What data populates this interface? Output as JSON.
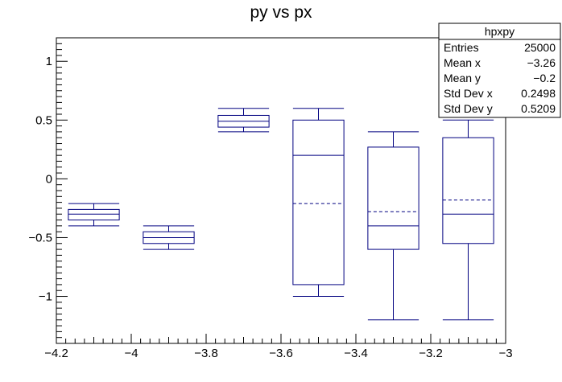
{
  "chart_data": {
    "type": "box",
    "title": "py vs px",
    "xlabel": "",
    "ylabel": "",
    "xlim": [
      -4.2,
      -3.0
    ],
    "ylim": [
      -1.4,
      1.2
    ],
    "xticks": [
      -4.2,
      -4.0,
      -3.8,
      -3.6,
      -3.4,
      -3.2,
      -3.0
    ],
    "xtick_labels": [
      "−4.2",
      "−4",
      "−3.8",
      "−3.6",
      "−3.4",
      "−3.2",
      "−3"
    ],
    "yticks": [
      -1.0,
      -0.5,
      0.0,
      0.5,
      1.0
    ],
    "ytick_labels": [
      "−1",
      "−0.5",
      "0",
      "0.5",
      "1"
    ],
    "boxes": [
      {
        "x": -4.1,
        "xmin": -4.2,
        "xmax": -4.0,
        "whisker_low": -0.4,
        "q1": -0.35,
        "median": -0.3,
        "mean": -0.3,
        "q3": -0.26,
        "whisker_high": -0.21
      },
      {
        "x": -3.9,
        "xmin": -4.0,
        "xmax": -3.8,
        "whisker_low": -0.6,
        "q1": -0.55,
        "median": -0.5,
        "mean": -0.5,
        "q3": -0.45,
        "whisker_high": -0.4
      },
      {
        "x": -3.7,
        "xmin": -3.8,
        "xmax": -3.6,
        "whisker_low": 0.4,
        "q1": 0.44,
        "median": 0.49,
        "mean": 0.49,
        "q3": 0.54,
        "whisker_high": 0.6
      },
      {
        "x": -3.5,
        "xmin": -3.6,
        "xmax": -3.4,
        "whisker_low": -1.0,
        "q1": -0.9,
        "median": 0.2,
        "mean": -0.21,
        "q3": 0.5,
        "whisker_high": 0.6
      },
      {
        "x": -3.3,
        "xmin": -3.4,
        "xmax": -3.2,
        "whisker_low": -1.2,
        "q1": -0.6,
        "median": -0.4,
        "mean": -0.28,
        "q3": 0.27,
        "whisker_high": 0.4
      },
      {
        "x": -3.1,
        "xmin": -3.2,
        "xmax": -3.0,
        "whisker_low": -1.2,
        "q1": -0.55,
        "median": -0.3,
        "mean": -0.18,
        "q3": 0.35,
        "whisker_high": 0.5
      }
    ],
    "stats_box": {
      "name": "hpxpy",
      "rows": [
        {
          "label": "Entries",
          "value": "25000"
        },
        {
          "label": "Mean x",
          "value": "−3.26"
        },
        {
          "label": "Mean y",
          "value": "−0.2"
        },
        {
          "label": "Std Dev x",
          "value": "0.2498"
        },
        {
          "label": "Std Dev y",
          "value": "0.5209"
        }
      ]
    },
    "colors": {
      "box": "#000080",
      "axis": "#000000",
      "background": "#ffffff"
    }
  }
}
